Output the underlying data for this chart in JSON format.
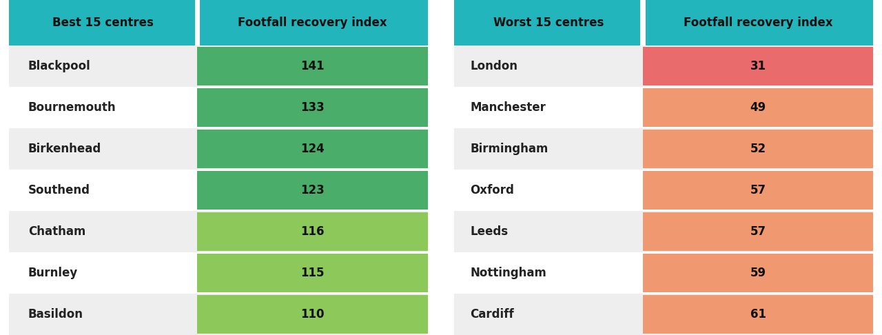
{
  "header_bg": "#22b5bc",
  "row_bg_odd": "#eeeeee",
  "row_bg_even": "#ffffff",
  "col1_header": "Best 15 centres",
  "col2_header": "Footfall recovery index",
  "col3_header": "Worst 15 centres",
  "col4_header": "Footfall recovery index",
  "best_cities": [
    "Blackpool",
    "Bournemouth",
    "Birkenhead",
    "Southend",
    "Chatham",
    "Burnley",
    "Basildon"
  ],
  "best_values": [
    "141",
    "133",
    "124",
    "123",
    "116",
    "115",
    "110"
  ],
  "worst_cities": [
    "London",
    "Manchester",
    "Birmingham",
    "Oxford",
    "Leeds",
    "Nottingham",
    "Cardiff"
  ],
  "worst_values": [
    "31",
    "49",
    "52",
    "57",
    "57",
    "59",
    "61"
  ],
  "best_green_colors": [
    "#4aad6a",
    "#4aad6a",
    "#4aad6a",
    "#4aad6a",
    "#8dc85a",
    "#8dc85a",
    "#8dc85a"
  ],
  "worst_colors": [
    "#e96b6b",
    "#f09870",
    "#f09870",
    "#f09870",
    "#f09870",
    "#f09870",
    "#f09870"
  ],
  "fig_width": 12.8,
  "fig_height": 4.86,
  "dpi": 100,
  "header_fontsize": 12,
  "cell_fontsize": 12,
  "name_fontsize": 12
}
